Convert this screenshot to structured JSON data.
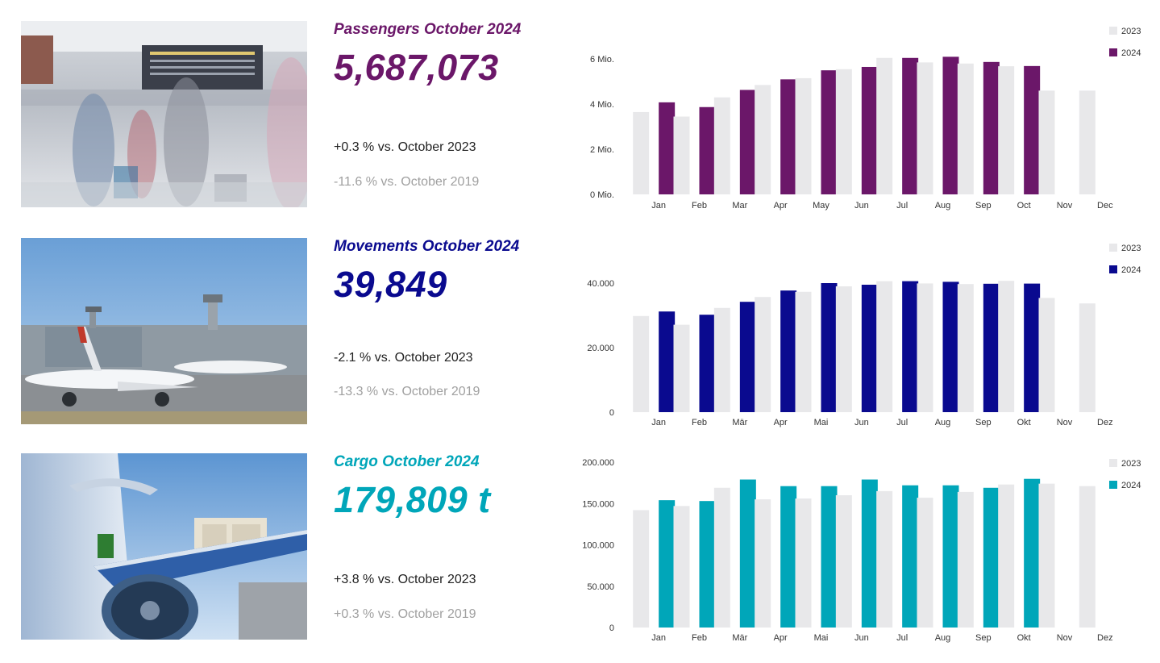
{
  "colors": {
    "passengers": "#6b1769",
    "movements": "#0a0a8f",
    "cargo": "#00a6b9",
    "baseline": "#e8e8ea"
  },
  "passengers": {
    "title": "Passengers October 2024",
    "value": "5,687,073",
    "delta_2023": "+0.3 % vs. October 2023",
    "delta_2019": "-11.6 % vs. October 2019"
  },
  "movements": {
    "title": "Movements October 2024",
    "value": "39,849",
    "delta_2023": "-2.1 % vs. October 2023",
    "delta_2019": "-13.3 % vs. October 2019"
  },
  "cargo": {
    "title": "Cargo October 2024",
    "value": "179,809 t",
    "delta_2023": "+3.8 % vs. October 2023",
    "delta_2019": "+0.3 % vs. October 2019"
  },
  "chart_data": [
    {
      "type": "bar",
      "categories": [
        "Jan",
        "Feb",
        "Mar",
        "Apr",
        "May",
        "Jun",
        "Jul",
        "Aug",
        "Sep",
        "Oct",
        "Nov",
        "Dec"
      ],
      "series": [
        {
          "name": "2023",
          "values": [
            3.65,
            3.45,
            4.3,
            4.85,
            5.15,
            5.55,
            6.05,
            5.85,
            5.8,
            5.68,
            4.6,
            4.6
          ]
        },
        {
          "name": "2024",
          "values": [
            4.08,
            3.87,
            4.63,
            5.1,
            5.5,
            5.65,
            6.05,
            6.1,
            5.87,
            5.69,
            null,
            null
          ]
        }
      ],
      "yticks": [
        {
          "value": 0,
          "label": "0 Mio."
        },
        {
          "value": 2,
          "label": "2 Mio."
        },
        {
          "value": 4,
          "label": "4 Mio."
        },
        {
          "value": 6,
          "label": "6 Mio."
        }
      ],
      "ylim": [
        0,
        6.4
      ],
      "legend": "top-right",
      "grid": false
    },
    {
      "type": "bar",
      "categories": [
        "Jan",
        "Feb",
        "Mär",
        "Apr",
        "Mai",
        "Jun",
        "Jul",
        "Aug",
        "Sep",
        "Okt",
        "Nov",
        "Dez"
      ],
      "series": [
        {
          "name": "2023",
          "values": [
            29800,
            27100,
            32300,
            35700,
            37300,
            39000,
            40600,
            39900,
            39700,
            40700,
            35400,
            33700
          ]
        },
        {
          "name": "2024",
          "values": [
            31200,
            30200,
            34200,
            37700,
            40000,
            39500,
            40600,
            40400,
            39800,
            39849,
            null,
            null
          ]
        }
      ],
      "yticks": [
        {
          "value": 0,
          "label": "0"
        },
        {
          "value": 20000,
          "label": "20.000"
        },
        {
          "value": 40000,
          "label": "40.000"
        }
      ],
      "ylim": [
        0,
        44000
      ],
      "legend": "top-right",
      "grid": false
    },
    {
      "type": "bar",
      "categories": [
        "Jan",
        "Feb",
        "Mär",
        "Apr",
        "Mai",
        "Jun",
        "Jul",
        "Aug",
        "Sep",
        "Okt",
        "Nov",
        "Dez"
      ],
      "series": [
        {
          "name": "2023",
          "values": [
            142000,
            147000,
            169000,
            155000,
            156000,
            160000,
            165000,
            157000,
            164000,
            173000,
            174000,
            171000
          ]
        },
        {
          "name": "2024",
          "values": [
            154000,
            153000,
            179000,
            171000,
            171000,
            179000,
            172000,
            172000,
            169000,
            179809,
            null,
            null
          ]
        }
      ],
      "yticks": [
        {
          "value": 0,
          "label": "0"
        },
        {
          "value": 50000,
          "label": "50.000"
        },
        {
          "value": 100000,
          "label": "100.000"
        },
        {
          "value": 150000,
          "label": "150.000"
        },
        {
          "value": 200000,
          "label": "200.000"
        }
      ],
      "ylim": [
        0,
        200000
      ],
      "legend": "top-right",
      "grid": false
    }
  ]
}
